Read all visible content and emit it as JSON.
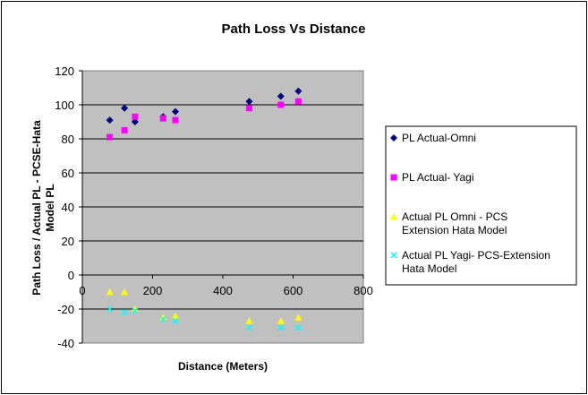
{
  "chart_data": {
    "type": "scatter",
    "title": "Path Loss Vs Distance",
    "xlabel": "Distance (Meters)",
    "ylabel_line1": "Path Loss / Actual PL - PCSE-Hata",
    "ylabel_line2": "Model PL",
    "xlim": [
      0,
      800
    ],
    "ylim": [
      -40,
      120
    ],
    "xticks": [
      0,
      200,
      400,
      600,
      800
    ],
    "yticks": [
      -40,
      -20,
      0,
      20,
      40,
      60,
      80,
      100,
      120
    ],
    "plot_background": "#c0c0c0",
    "grid": "horizontal",
    "legend_position": "right",
    "series": [
      {
        "name": "PL Actual-Omni",
        "legend_lines": [
          "PL Actual-Omni"
        ],
        "marker": "diamond",
        "color": "#000080",
        "x": [
          78,
          120,
          150,
          230,
          265,
          475,
          565,
          615
        ],
        "y": [
          91,
          98,
          90,
          93,
          96,
          102,
          105,
          108
        ]
      },
      {
        "name": "PL Actual- Yagi",
        "legend_lines": [
          "PL Actual- Yagi"
        ],
        "marker": "square",
        "color": "#ff00ff",
        "x": [
          78,
          120,
          150,
          230,
          265,
          475,
          565,
          615
        ],
        "y": [
          81,
          85,
          93,
          92,
          91,
          98,
          100,
          102
        ]
      },
      {
        "name": "Actual PL Omni - PCS Extension Hata Model",
        "legend_lines": [
          "Actual PL Omni - PCS",
          "Extension Hata Model"
        ],
        "marker": "triangle",
        "color": "#ffff00",
        "x": [
          78,
          120,
          150,
          230,
          265,
          475,
          565,
          615
        ],
        "y": [
          -10,
          -10,
          -20,
          -25,
          -24,
          -27,
          -27,
          -25
        ]
      },
      {
        "name": "Actual PL Yagi- PCS-Extension Hata Model",
        "legend_lines": [
          "Actual PL Yagi- PCS-Extension",
          "Hata Model"
        ],
        "marker": "x",
        "color": "#00ffff",
        "x": [
          78,
          120,
          150,
          230,
          265,
          475,
          565,
          615
        ],
        "y": [
          -20,
          -22,
          -21,
          -26,
          -27,
          -31,
          -31,
          -31
        ]
      }
    ]
  }
}
